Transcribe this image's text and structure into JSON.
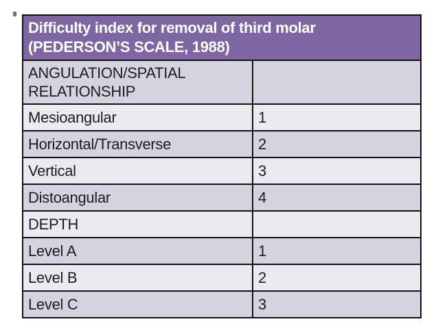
{
  "slide": {
    "header": {
      "title_line1": "Difficulty index for removal of third molar",
      "title_line2": "(PEDERSON’S SCALE, 1988)"
    },
    "table": {
      "rows": [
        {
          "label": "ANGULATION/SPATIAL RELATIONSHIP",
          "value": "",
          "tall": true
        },
        {
          "label": "Mesioangular",
          "value": "1"
        },
        {
          "label": "Horizontal/Transverse",
          "value": "2"
        },
        {
          "label": "Vertical",
          "value": "3"
        },
        {
          "label": "Distoangular",
          "value": "4"
        },
        {
          "label": "DEPTH",
          "value": ""
        },
        {
          "label": "Level A",
          "value": "1"
        },
        {
          "label": "Level B",
          "value": "2"
        },
        {
          "label": "Level C",
          "value": "3"
        }
      ]
    },
    "colors": {
      "header_bg": "#7D66A1",
      "header_text": "#FFFFFF",
      "row_dark": "#D6D3E1",
      "row_light": "#EBEAF1",
      "body_text": "#1C1C1C",
      "border": "#101010"
    }
  }
}
